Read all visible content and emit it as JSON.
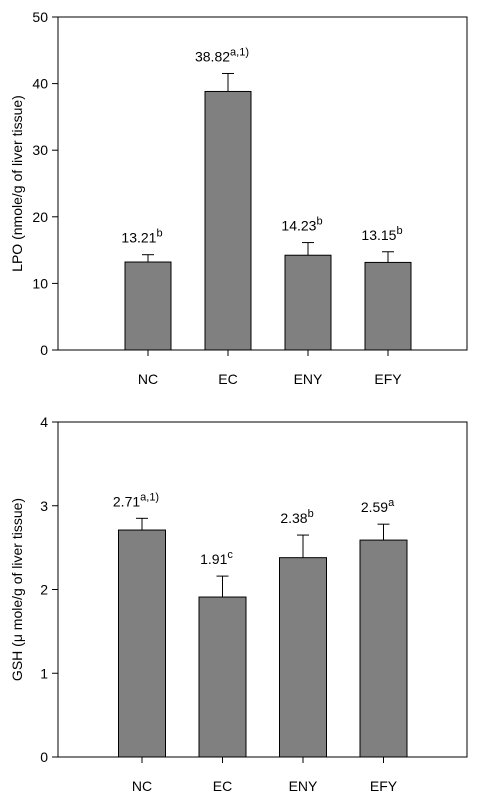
{
  "chart_data": [
    {
      "type": "bar",
      "ylabel": "LPO (nmole/g of liver tissue)",
      "categories": [
        "NC",
        "EC",
        "ENY",
        "EFY"
      ],
      "values": [
        13.21,
        38.82,
        14.23,
        13.15
      ],
      "errors": [
        1.1,
        2.7,
        1.9,
        1.6
      ],
      "superscripts": [
        "b",
        "a,1)",
        "b",
        "b"
      ],
      "color": "#808080",
      "ylim": [
        0,
        50
      ],
      "yticks": [
        0,
        10,
        20,
        30,
        40,
        50
      ]
    },
    {
      "type": "bar",
      "ylabel": "GSH (μ mole/g of liver tissue)",
      "categories": [
        "NC",
        "EC",
        "ENY",
        "EFY"
      ],
      "values": [
        2.71,
        1.91,
        2.38,
        2.59
      ],
      "errors": [
        0.14,
        0.25,
        0.27,
        0.19
      ],
      "superscripts": [
        "a,1)",
        "c",
        "b",
        "a"
      ],
      "color": "#808080",
      "ylim": [
        0,
        4
      ],
      "yticks": [
        0,
        1,
        2,
        3,
        4
      ]
    }
  ]
}
